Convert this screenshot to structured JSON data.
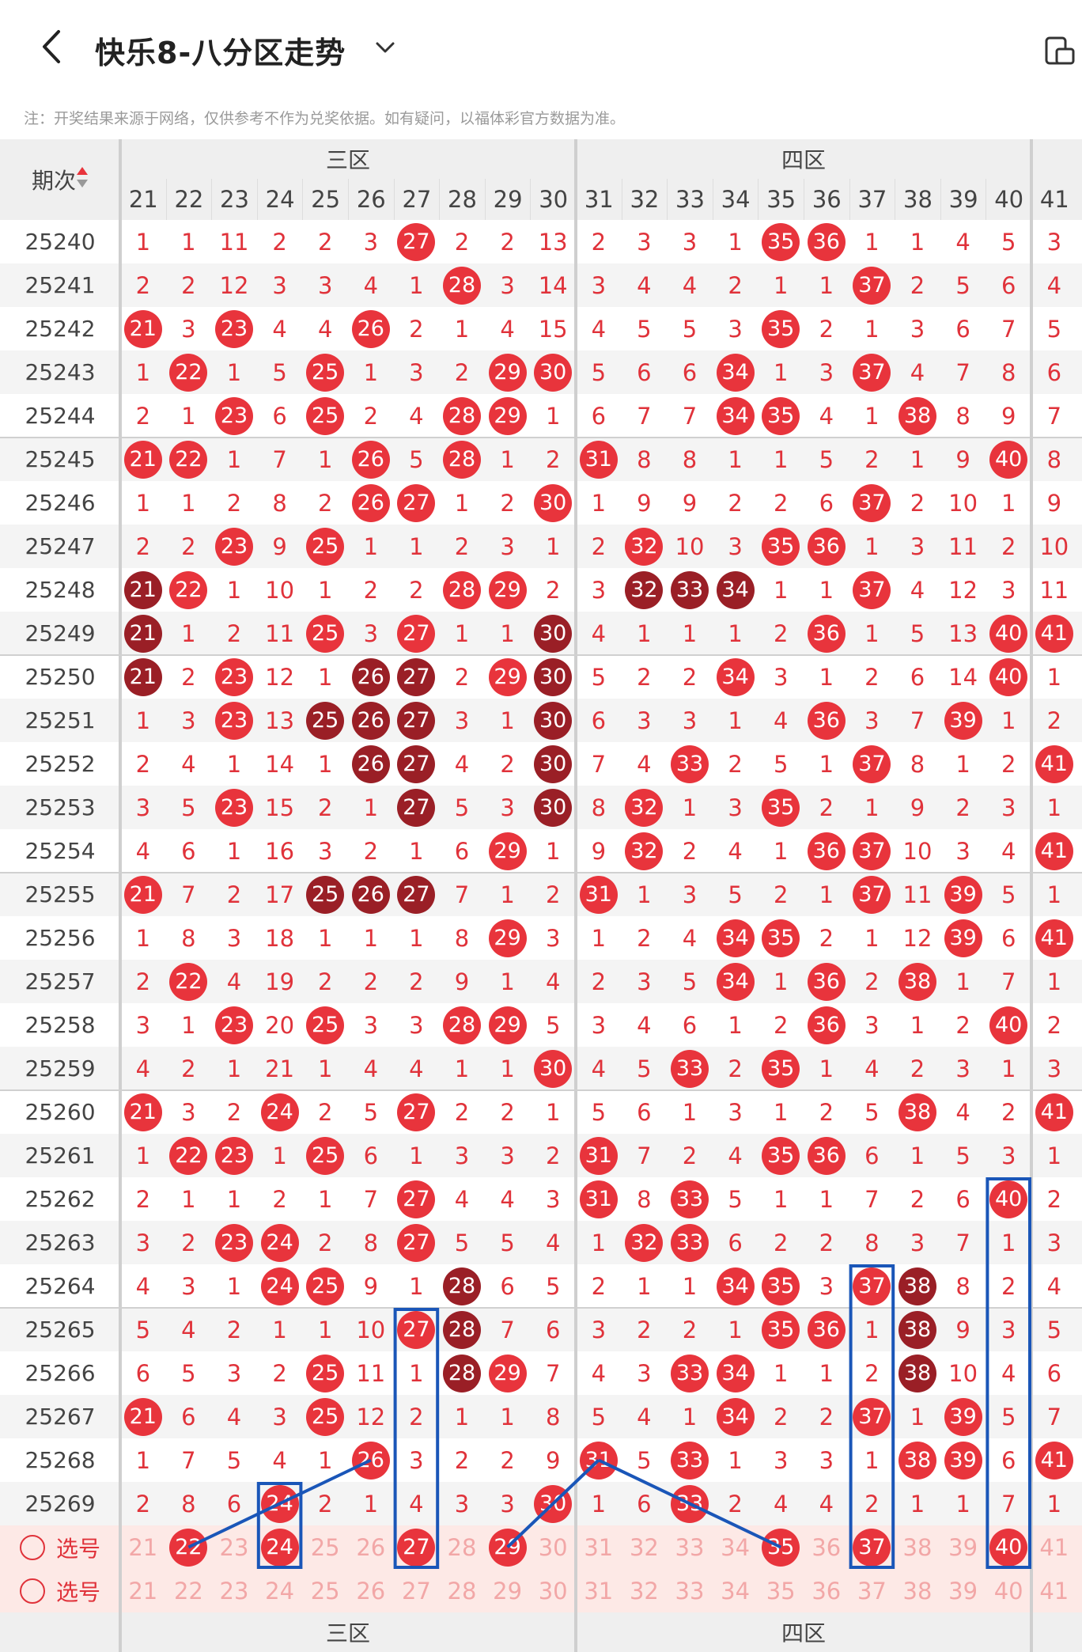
{
  "header": {
    "title": "快乐8-八分区走势",
    "note": "注：开奖结果来源于网络，仅供参考不作为兑奖依据。如有疑问，以福体彩官方数据为准。",
    "icons": {
      "back": "chevron-left-icon",
      "dropdown": "chevron-down-icon",
      "tool": "screen-rotate-icon"
    }
  },
  "table": {
    "period_header": "期次",
    "zones": [
      "三区",
      "四区"
    ],
    "columns": [
      21,
      22,
      23,
      24,
      25,
      26,
      27,
      28,
      29,
      30,
      31,
      32,
      33,
      34,
      35,
      36,
      37,
      38,
      39,
      40,
      41
    ],
    "rows": [
      {
        "period": "25240",
        "cells": [
          "1",
          "1",
          "11",
          "2",
          "2",
          "3",
          "27",
          "2",
          "2",
          "13",
          "2",
          "3",
          "3",
          "1",
          "35",
          "36",
          "1",
          "1",
          "4",
          "5",
          "3"
        ]
      },
      {
        "period": "25241",
        "cells": [
          "2",
          "2",
          "12",
          "3",
          "3",
          "4",
          "1",
          "28",
          "3",
          "14",
          "3",
          "4",
          "4",
          "2",
          "1",
          "1",
          "37",
          "2",
          "5",
          "6",
          "4"
        ]
      },
      {
        "period": "25242",
        "cells": [
          "21",
          "3",
          "23",
          "4",
          "4",
          "26",
          "2",
          "1",
          "4",
          "15",
          "4",
          "5",
          "5",
          "3",
          "35",
          "2",
          "1",
          "3",
          "6",
          "7",
          "5"
        ]
      },
      {
        "period": "25243",
        "cells": [
          "1",
          "22",
          "1",
          "5",
          "25",
          "1",
          "3",
          "2",
          "29",
          "30",
          "5",
          "6",
          "6",
          "34",
          "1",
          "3",
          "37",
          "4",
          "7",
          "8",
          "6"
        ]
      },
      {
        "period": "25244",
        "cells": [
          "2",
          "1",
          "23",
          "6",
          "25",
          "2",
          "4",
          "28",
          "29",
          "1",
          "6",
          "7",
          "7",
          "34",
          "35",
          "4",
          "1",
          "38",
          "8",
          "9",
          "7"
        ]
      },
      {
        "period": "25245",
        "cells": [
          "21",
          "22",
          "1",
          "7",
          "1",
          "26",
          "5",
          "28",
          "1",
          "2",
          "31",
          "8",
          "8",
          "1",
          "1",
          "5",
          "2",
          "1",
          "9",
          "40",
          "8"
        ]
      },
      {
        "period": "25246",
        "cells": [
          "1",
          "1",
          "2",
          "8",
          "2",
          "26",
          "27",
          "1",
          "2",
          "30",
          "1",
          "9",
          "9",
          "2",
          "2",
          "6",
          "37",
          "2",
          "10",
          "1",
          "9"
        ]
      },
      {
        "period": "25247",
        "cells": [
          "2",
          "2",
          "23",
          "9",
          "25",
          "1",
          "1",
          "2",
          "3",
          "1",
          "2",
          "32",
          "10",
          "3",
          "35",
          "36",
          "1",
          "3",
          "11",
          "2",
          "10"
        ]
      },
      {
        "period": "25248",
        "cells": [
          "21",
          "22",
          "1",
          "10",
          "1",
          "2",
          "2",
          "28",
          "29",
          "2",
          "3",
          "32",
          "33",
          "34",
          "1",
          "1",
          "37",
          "4",
          "12",
          "3",
          "11"
        ]
      },
      {
        "period": "25249",
        "cells": [
          "21",
          "1",
          "2",
          "11",
          "25",
          "3",
          "27",
          "1",
          "1",
          "30",
          "4",
          "1",
          "1",
          "1",
          "2",
          "36",
          "1",
          "5",
          "13",
          "40",
          "41"
        ]
      },
      {
        "period": "25250",
        "cells": [
          "21",
          "2",
          "23",
          "12",
          "1",
          "26",
          "27",
          "2",
          "29",
          "30",
          "5",
          "2",
          "2",
          "34",
          "3",
          "1",
          "2",
          "6",
          "14",
          "40",
          "1"
        ]
      },
      {
        "period": "25251",
        "cells": [
          "1",
          "3",
          "23",
          "13",
          "25",
          "26",
          "27",
          "3",
          "1",
          "30",
          "6",
          "3",
          "3",
          "1",
          "4",
          "36",
          "3",
          "7",
          "39",
          "1",
          "2"
        ]
      },
      {
        "period": "25252",
        "cells": [
          "2",
          "4",
          "1",
          "14",
          "1",
          "26",
          "27",
          "4",
          "2",
          "30",
          "7",
          "4",
          "33",
          "2",
          "5",
          "1",
          "37",
          "8",
          "1",
          "2",
          "41"
        ]
      },
      {
        "period": "25253",
        "cells": [
          "3",
          "5",
          "23",
          "15",
          "2",
          "1",
          "27",
          "5",
          "3",
          "30",
          "8",
          "32",
          "1",
          "3",
          "35",
          "2",
          "1",
          "9",
          "2",
          "3",
          "1"
        ]
      },
      {
        "period": "25254",
        "cells": [
          "4",
          "6",
          "1",
          "16",
          "3",
          "2",
          "1",
          "6",
          "29",
          "1",
          "9",
          "32",
          "2",
          "4",
          "1",
          "36",
          "37",
          "10",
          "3",
          "4",
          "41"
        ]
      },
      {
        "period": "25255",
        "cells": [
          "21",
          "7",
          "2",
          "17",
          "25",
          "26",
          "27",
          "7",
          "1",
          "2",
          "31",
          "1",
          "3",
          "5",
          "2",
          "1",
          "37",
          "11",
          "39",
          "5",
          "1"
        ]
      },
      {
        "period": "25256",
        "cells": [
          "1",
          "8",
          "3",
          "18",
          "1",
          "1",
          "1",
          "8",
          "29",
          "3",
          "1",
          "2",
          "4",
          "34",
          "35",
          "2",
          "1",
          "12",
          "39",
          "6",
          "41"
        ]
      },
      {
        "period": "25257",
        "cells": [
          "2",
          "22",
          "4",
          "19",
          "2",
          "2",
          "2",
          "9",
          "1",
          "4",
          "2",
          "3",
          "5",
          "34",
          "1",
          "36",
          "2",
          "38",
          "1",
          "7",
          "1"
        ]
      },
      {
        "period": "25258",
        "cells": [
          "3",
          "1",
          "23",
          "20",
          "25",
          "3",
          "3",
          "28",
          "29",
          "5",
          "3",
          "4",
          "6",
          "1",
          "2",
          "36",
          "3",
          "1",
          "2",
          "40",
          "2"
        ]
      },
      {
        "period": "25259",
        "cells": [
          "4",
          "2",
          "1",
          "21",
          "1",
          "4",
          "4",
          "1",
          "1",
          "30",
          "4",
          "5",
          "33",
          "2",
          "35",
          "1",
          "4",
          "2",
          "3",
          "1",
          "3"
        ]
      },
      {
        "period": "25260",
        "cells": [
          "21",
          "3",
          "2",
          "24",
          "2",
          "5",
          "27",
          "2",
          "2",
          "1",
          "5",
          "6",
          "1",
          "3",
          "1",
          "2",
          "5",
          "38",
          "4",
          "2",
          "41"
        ]
      },
      {
        "period": "25261",
        "cells": [
          "1",
          "22",
          "23",
          "1",
          "25",
          "6",
          "1",
          "3",
          "3",
          "2",
          "31",
          "7",
          "2",
          "4",
          "35",
          "36",
          "6",
          "1",
          "5",
          "3",
          "1"
        ]
      },
      {
        "period": "25262",
        "cells": [
          "2",
          "1",
          "1",
          "2",
          "1",
          "7",
          "27",
          "4",
          "4",
          "3",
          "31",
          "8",
          "33",
          "5",
          "1",
          "1",
          "7",
          "2",
          "6",
          "40",
          "2"
        ]
      },
      {
        "period": "25263",
        "cells": [
          "3",
          "2",
          "23",
          "24",
          "2",
          "8",
          "27",
          "5",
          "5",
          "4",
          "1",
          "32",
          "33",
          "6",
          "2",
          "2",
          "8",
          "3",
          "7",
          "1",
          "3"
        ]
      },
      {
        "period": "25264",
        "cells": [
          "4",
          "3",
          "1",
          "24",
          "25",
          "9",
          "1",
          "28",
          "6",
          "5",
          "2",
          "1",
          "1",
          "34",
          "35",
          "3",
          "37",
          "38",
          "8",
          "2",
          "4"
        ]
      },
      {
        "period": "25265",
        "cells": [
          "5",
          "4",
          "2",
          "1",
          "1",
          "10",
          "27",
          "28",
          "7",
          "6",
          "3",
          "2",
          "2",
          "1",
          "35",
          "36",
          "1",
          "38",
          "9",
          "3",
          "5"
        ]
      },
      {
        "period": "25266",
        "cells": [
          "6",
          "5",
          "3",
          "2",
          "25",
          "11",
          "1",
          "28",
          "29",
          "7",
          "4",
          "3",
          "33",
          "34",
          "1",
          "1",
          "2",
          "38",
          "10",
          "4",
          "6"
        ]
      },
      {
        "period": "25267",
        "cells": [
          "21",
          "6",
          "4",
          "3",
          "25",
          "12",
          "2",
          "1",
          "1",
          "8",
          "5",
          "4",
          "1",
          "34",
          "2",
          "2",
          "37",
          "1",
          "39",
          "5",
          "7"
        ]
      },
      {
        "period": "25268",
        "cells": [
          "1",
          "7",
          "5",
          "4",
          "1",
          "26",
          "3",
          "2",
          "2",
          "9",
          "31",
          "5",
          "33",
          "1",
          "3",
          "3",
          "1",
          "38",
          "39",
          "6",
          "41"
        ]
      },
      {
        "period": "25269",
        "cells": [
          "2",
          "8",
          "6",
          "24",
          "2",
          "1",
          "4",
          "3",
          "3",
          "30",
          "1",
          "6",
          "33",
          "2",
          "4",
          "4",
          "2",
          "1",
          "1",
          "7",
          "1"
        ]
      }
    ],
    "select_rows": [
      {
        "label": "选号",
        "selected": [
          "22",
          "24",
          "27",
          "29",
          "35",
          "37",
          "40"
        ]
      },
      {
        "label": "选号",
        "selected": []
      }
    ],
    "colors": {
      "red": "#e8343c",
      "dark": "#9a1f26",
      "text": "#e0323a",
      "stripe": "#f4f4f4",
      "header_bg": "#efefef",
      "select_bg": "#fde9e6",
      "line": "#1a56b8"
    }
  }
}
